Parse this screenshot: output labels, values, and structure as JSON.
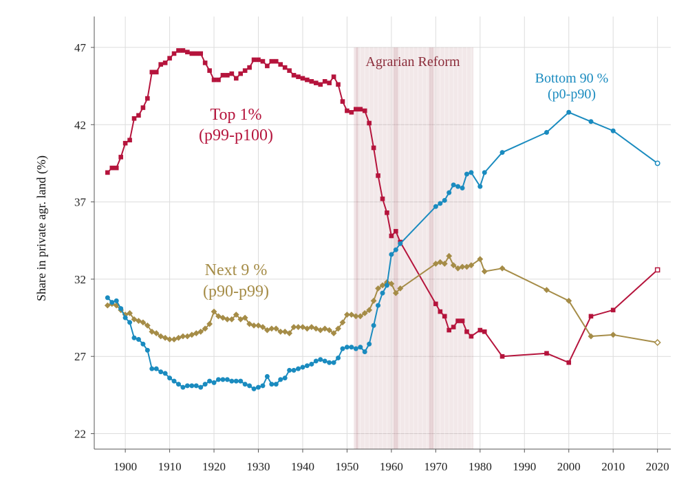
{
  "chart_data": {
    "type": "line",
    "ylabel": "Share in private agr. land (%)",
    "xlabel": "",
    "xlim": [
      1893,
      2023
    ],
    "ylim": [
      21,
      49
    ],
    "xticks": [
      1900,
      1910,
      1920,
      1930,
      1940,
      1950,
      1960,
      1970,
      1980,
      1990,
      2000,
      2010,
      2020
    ],
    "yticks": [
      22,
      27,
      32,
      37,
      42,
      47
    ],
    "shaded_period": {
      "label": "Agrarian Reform",
      "start": 1952,
      "end": 1978.5,
      "sub_markers": [
        1952,
        1961,
        1969
      ],
      "color": "#8b2c3a"
    },
    "series": [
      {
        "name": "Top 1%",
        "range_label": "(p99-p100)",
        "color": "#b5143c",
        "marker": "square",
        "x": [
          1896,
          1897,
          1898,
          1899,
          1900,
          1901,
          1902,
          1903,
          1904,
          1905,
          1906,
          1907,
          1908,
          1909,
          1910,
          1911,
          1912,
          1913,
          1914,
          1915,
          1916,
          1917,
          1918,
          1919,
          1920,
          1921,
          1922,
          1923,
          1924,
          1925,
          1926,
          1927,
          1928,
          1929,
          1930,
          1931,
          1932,
          1933,
          1934,
          1935,
          1936,
          1937,
          1938,
          1939,
          1940,
          1941,
          1942,
          1943,
          1944,
          1945,
          1946,
          1947,
          1948,
          1949,
          1950,
          1951,
          1952,
          1953,
          1954,
          1955,
          1956,
          1957,
          1958,
          1959,
          1960,
          1961,
          1962,
          1970,
          1971,
          1972,
          1973,
          1974,
          1975,
          1976,
          1977,
          1978,
          1980,
          1981,
          1985,
          1995,
          2000,
          2005,
          2010,
          2020
        ],
        "values": [
          38.9,
          39.2,
          39.2,
          39.9,
          40.8,
          41.0,
          42.4,
          42.6,
          43.1,
          43.7,
          45.4,
          45.4,
          45.9,
          46.0,
          46.3,
          46.6,
          46.8,
          46.8,
          46.7,
          46.6,
          46.6,
          46.6,
          46.0,
          45.5,
          44.9,
          44.9,
          45.2,
          45.2,
          45.3,
          45.0,
          45.3,
          45.5,
          45.7,
          46.2,
          46.2,
          46.1,
          45.8,
          46.1,
          46.1,
          45.9,
          45.7,
          45.5,
          45.2,
          45.1,
          45.0,
          44.9,
          44.8,
          44.7,
          44.6,
          44.8,
          44.7,
          45.1,
          44.6,
          43.5,
          42.9,
          42.8,
          43.0,
          43.0,
          42.9,
          42.1,
          40.5,
          38.7,
          37.2,
          36.3,
          34.8,
          35.1,
          34.4,
          30.4,
          29.9,
          29.6,
          28.7,
          28.9,
          29.3,
          29.3,
          28.6,
          28.3,
          28.7,
          28.6,
          27.0,
          27.2,
          26.6,
          29.6,
          30.0,
          32.6
        ]
      },
      {
        "name": "Next 9 %",
        "range_label": "(p90-p99)",
        "color": "#a58c47",
        "marker": "diamond",
        "x": [
          1896,
          1897,
          1898,
          1899,
          1900,
          1901,
          1902,
          1903,
          1904,
          1905,
          1906,
          1907,
          1908,
          1909,
          1910,
          1911,
          1912,
          1913,
          1914,
          1915,
          1916,
          1917,
          1918,
          1919,
          1920,
          1921,
          1922,
          1923,
          1924,
          1925,
          1926,
          1927,
          1928,
          1929,
          1930,
          1931,
          1932,
          1933,
          1934,
          1935,
          1936,
          1937,
          1938,
          1939,
          1940,
          1941,
          1942,
          1943,
          1944,
          1945,
          1946,
          1947,
          1948,
          1949,
          1950,
          1951,
          1952,
          1953,
          1954,
          1955,
          1956,
          1957,
          1958,
          1959,
          1960,
          1961,
          1962,
          1970,
          1971,
          1972,
          1973,
          1974,
          1975,
          1976,
          1977,
          1978,
          1980,
          1981,
          1985,
          1995,
          2000,
          2005,
          2010,
          2020
        ],
        "values": [
          30.3,
          30.4,
          30.3,
          30.0,
          29.7,
          29.8,
          29.4,
          29.3,
          29.2,
          29.0,
          28.6,
          28.5,
          28.3,
          28.2,
          28.1,
          28.1,
          28.2,
          28.3,
          28.3,
          28.4,
          28.5,
          28.6,
          28.8,
          29.1,
          29.9,
          29.6,
          29.5,
          29.4,
          29.4,
          29.7,
          29.4,
          29.5,
          29.1,
          29.0,
          29.0,
          28.9,
          28.7,
          28.8,
          28.8,
          28.6,
          28.6,
          28.5,
          28.9,
          28.9,
          28.9,
          28.8,
          28.9,
          28.8,
          28.7,
          28.8,
          28.7,
          28.5,
          28.8,
          29.2,
          29.7,
          29.7,
          29.6,
          29.6,
          29.8,
          30.0,
          30.6,
          31.4,
          31.6,
          31.8,
          31.7,
          31.1,
          31.4,
          33.0,
          33.1,
          33.0,
          33.5,
          32.9,
          32.7,
          32.8,
          32.8,
          32.9,
          33.3,
          32.5,
          32.7,
          31.3,
          30.6,
          28.3,
          28.4,
          27.9
        ]
      },
      {
        "name": "Bottom 90 %",
        "range_label": "(p0-p90)",
        "color": "#1a8bbf",
        "marker": "circle",
        "x": [
          1896,
          1897,
          1898,
          1899,
          1900,
          1901,
          1902,
          1903,
          1904,
          1905,
          1906,
          1907,
          1908,
          1909,
          1910,
          1911,
          1912,
          1913,
          1914,
          1915,
          1916,
          1917,
          1918,
          1919,
          1920,
          1921,
          1922,
          1923,
          1924,
          1925,
          1926,
          1927,
          1928,
          1929,
          1930,
          1931,
          1932,
          1933,
          1934,
          1935,
          1936,
          1937,
          1938,
          1939,
          1940,
          1941,
          1942,
          1943,
          1944,
          1945,
          1946,
          1947,
          1948,
          1949,
          1950,
          1951,
          1952,
          1953,
          1954,
          1955,
          1956,
          1957,
          1958,
          1959,
          1960,
          1961,
          1962,
          1970,
          1971,
          1972,
          1973,
          1974,
          1975,
          1976,
          1977,
          1978,
          1980,
          1981,
          1985,
          1995,
          2000,
          2005,
          2010,
          2020
        ],
        "values": [
          30.8,
          30.5,
          30.6,
          30.1,
          29.5,
          29.2,
          28.2,
          28.1,
          27.8,
          27.4,
          26.2,
          26.2,
          26.0,
          25.9,
          25.6,
          25.4,
          25.2,
          25.0,
          25.1,
          25.1,
          25.1,
          25.0,
          25.2,
          25.4,
          25.3,
          25.5,
          25.5,
          25.5,
          25.4,
          25.4,
          25.4,
          25.2,
          25.1,
          24.9,
          25.0,
          25.1,
          25.7,
          25.2,
          25.2,
          25.5,
          25.6,
          26.1,
          26.1,
          26.2,
          26.3,
          26.4,
          26.5,
          26.7,
          26.8,
          26.7,
          26.6,
          26.6,
          26.9,
          27.5,
          27.6,
          27.6,
          27.5,
          27.6,
          27.3,
          27.8,
          29.0,
          30.3,
          31.1,
          31.6,
          33.6,
          33.9,
          34.3,
          36.7,
          36.9,
          37.1,
          37.6,
          38.1,
          38.0,
          37.9,
          38.8,
          38.9,
          38.0,
          38.9,
          40.2,
          41.5,
          42.8,
          42.2,
          41.6,
          39.5
        ]
      }
    ]
  }
}
